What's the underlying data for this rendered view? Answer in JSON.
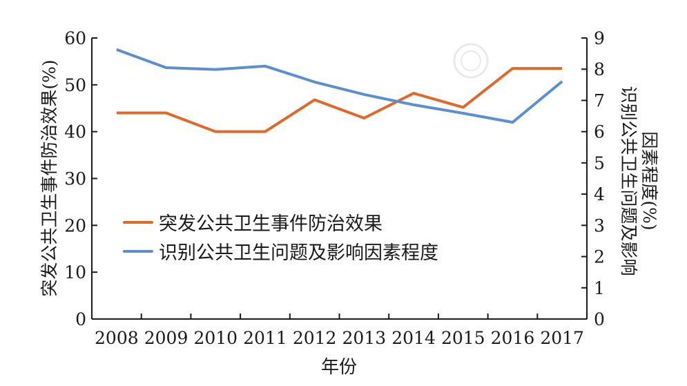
{
  "chart_data": {
    "type": "line",
    "xlabel": "年份",
    "ylabel_left": "突发公共卫生事件防治效果(%)",
    "ylabel_right_line1": "识别公共卫生问题及影响",
    "ylabel_right_line2": "因素程度(%)",
    "categories": [
      "2008",
      "2009",
      "2010",
      "2011",
      "2012",
      "2013",
      "2014",
      "2015",
      "2016",
      "2017"
    ],
    "ylim_left": [
      0,
      60
    ],
    "yticks_left": [
      "0",
      "10",
      "20",
      "30",
      "40",
      "50",
      "60"
    ],
    "ylim_right": [
      0,
      9
    ],
    "yticks_right": [
      "0",
      "1",
      "2",
      "3",
      "4",
      "5",
      "6",
      "7",
      "8",
      "9"
    ],
    "grid": false,
    "legend_position": "center-left",
    "series": [
      {
        "name": "突发公共卫生事件防治效果",
        "axis": "left",
        "color": "#e0692a",
        "values": [
          44,
          44,
          40,
          40,
          46.8,
          42.9,
          48.2,
          45.2,
          53.5,
          53.5
        ]
      },
      {
        "name": "识别公共卫生问题及影响因素程度",
        "axis": "right",
        "color": "#5b8fcf",
        "values": [
          8.63,
          8.05,
          7.99,
          8.1,
          7.59,
          7.19,
          6.86,
          6.59,
          6.3,
          7.61
        ]
      }
    ]
  }
}
